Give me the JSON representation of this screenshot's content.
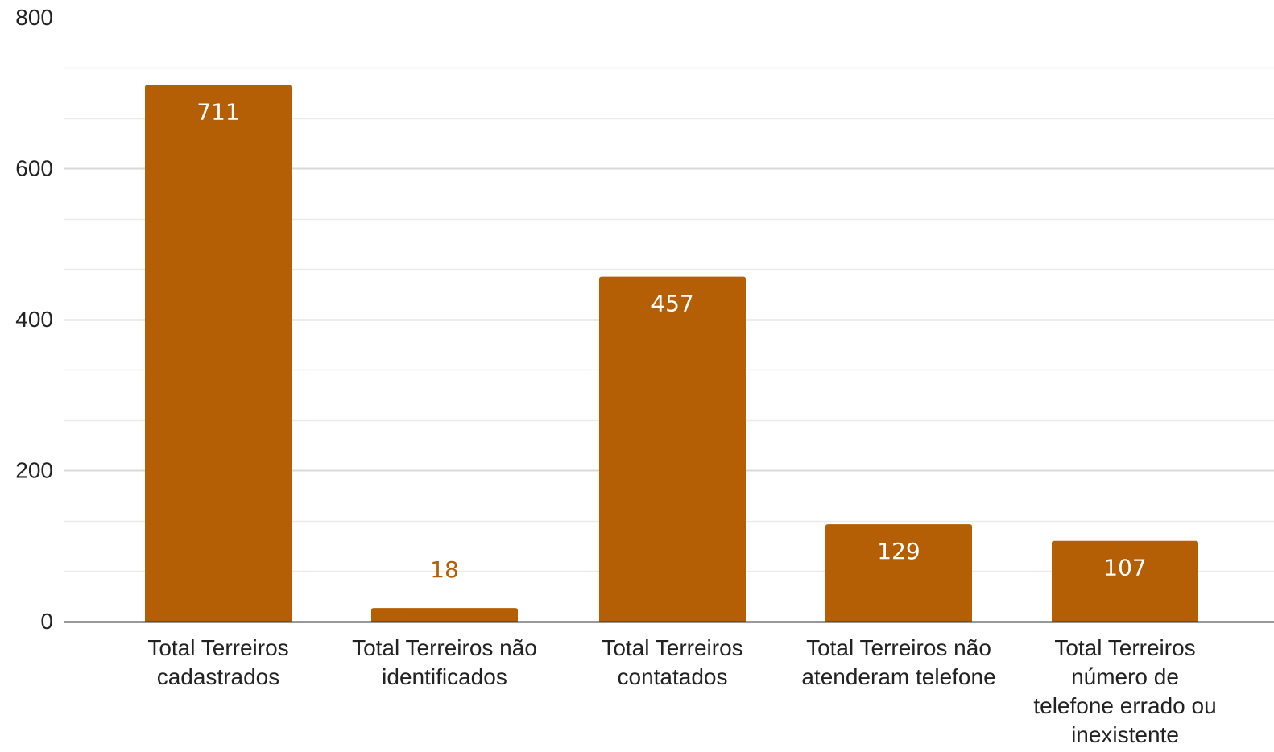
{
  "chart_data": {
    "type": "bar",
    "categories": [
      [
        "Total Terreiros",
        "cadastrados"
      ],
      [
        "Total Terreiros não",
        "identificados"
      ],
      [
        "Total Terreiros",
        "contatados"
      ],
      [
        "Total Terreiros não",
        "atenderam telefone"
      ],
      [
        "Total Terreiros",
        "número de",
        "telefone errado ou",
        "inexistente"
      ]
    ],
    "values": [
      711,
      18,
      457,
      129,
      107
    ],
    "value_labels": [
      "711",
      "18",
      "457",
      "129",
      "107"
    ],
    "title": "",
    "xlabel": "",
    "ylabel": "",
    "ylim": [
      0,
      800
    ],
    "major_ticks": [
      0,
      200,
      400,
      600,
      800
    ],
    "tick_labels": [
      "0",
      "200",
      "400",
      "600",
      "800"
    ],
    "minor_gridline_step": 66.67,
    "grid": true,
    "legend": "none",
    "colors": {
      "bar": "#b45f06",
      "label_inside": "#ffffff",
      "label_outside": "#b45f06",
      "gridline": "#d9d9d9",
      "minor_gridline": "#ebebeb",
      "axis": "#333333"
    }
  }
}
